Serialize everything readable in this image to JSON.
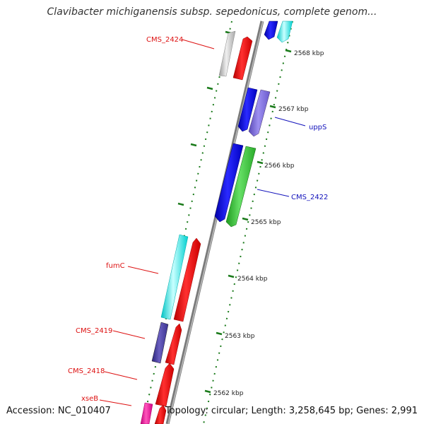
{
  "title": "Clavibacter michiganensis subsp. sepedonicus, complete genom...",
  "footer": {
    "accession": "Accession: NC_010407",
    "topology": "Topology: circular; Length: 3,258,645 bp; Genes: 2,991"
  },
  "colors": {
    "backbone": "#8c8c8c",
    "tick": "#1a7a1a",
    "forward_label": "#dd1111",
    "reverse_label": "#1111bb"
  },
  "chart_data": {
    "type": "genome-map-segment",
    "topology": "circular",
    "length_bp": 3258645,
    "gene_count": 2991,
    "position_unit": "kbp",
    "position_labels": [
      "2562 kbp",
      "2563 kbp",
      "2564 kbp",
      "2565 kbp",
      "2566 kbp",
      "2567 kbp",
      "2568 kbp"
    ],
    "gene_labels": [
      {
        "name": "CMS_2424",
        "strand": "forward"
      },
      {
        "name": "uppS",
        "strand": "reverse"
      },
      {
        "name": "CMS_2422",
        "strand": "reverse"
      },
      {
        "name": "fumC",
        "strand": "forward"
      },
      {
        "name": "CMS_2419",
        "strand": "forward"
      },
      {
        "name": "CMS_2418",
        "strand": "forward"
      },
      {
        "name": "xseB",
        "strand": "forward"
      }
    ]
  }
}
